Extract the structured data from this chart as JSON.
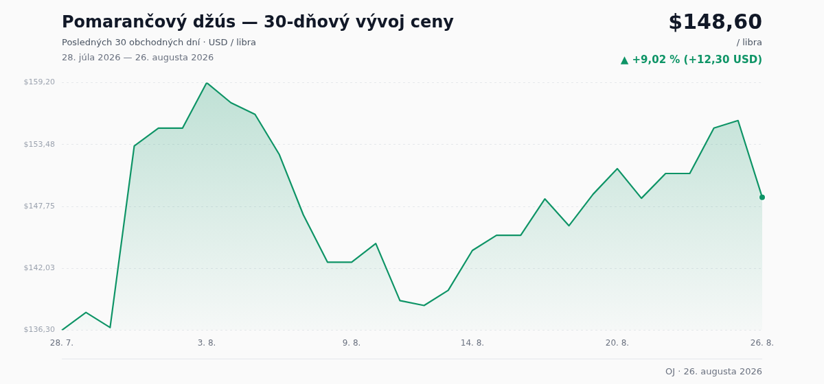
{
  "chart_data": {
    "type": "area",
    "title": "Pomarančový džús — 30-dňový vývoj ceny",
    "subtitle": "Posledných 30 obchodných dní · USD / libra",
    "annotations": [
      "28. júla 2026 — 26. augusta 2026",
      "$148,60",
      "/ libra",
      "▲ +9,02 % (+12,30 USD)",
      "OJ · 26. augusta 2026"
    ],
    "categories": [
      "28. 7.",
      null,
      null,
      null,
      null,
      null,
      "3. 8.",
      null,
      null,
      null,
      null,
      null,
      "9. 8.",
      null,
      null,
      null,
      null,
      "14. 8.",
      null,
      null,
      null,
      null,
      null,
      "20. 8.",
      null,
      null,
      null,
      null,
      null,
      "26. 8."
    ],
    "series": [
      {
        "color": "#0e9466",
        "values": [
          136.3,
          137.95,
          136.55,
          153.35,
          155.0,
          155.0,
          159.2,
          157.35,
          156.27,
          152.58,
          146.98,
          142.6,
          142.6,
          144.32,
          139.04,
          138.59,
          139.99,
          143.68,
          145.08,
          145.08,
          148.45,
          145.97,
          148.89,
          151.25,
          148.51,
          150.8,
          150.8,
          155.0,
          155.7,
          148.6
        ]
      },
      {
        "type": "scatter",
        "color": "#0e9466",
        "marker": "circle",
        "x": [
          "26. 8."
        ],
        "values": [
          148.6
        ]
      }
    ],
    "ylim": [
      136.3,
      159.2
    ],
    "yticks": [
      {
        "value": 136.3,
        "label": "$136,30"
      },
      {
        "value": 142.03,
        "label": "$142,03"
      },
      {
        "value": 147.75,
        "label": "$147,75"
      },
      {
        "value": 153.48,
        "label": "$153,48"
      },
      {
        "value": 159.2,
        "label": "$159,20"
      }
    ],
    "grid": "y",
    "legend": false
  }
}
